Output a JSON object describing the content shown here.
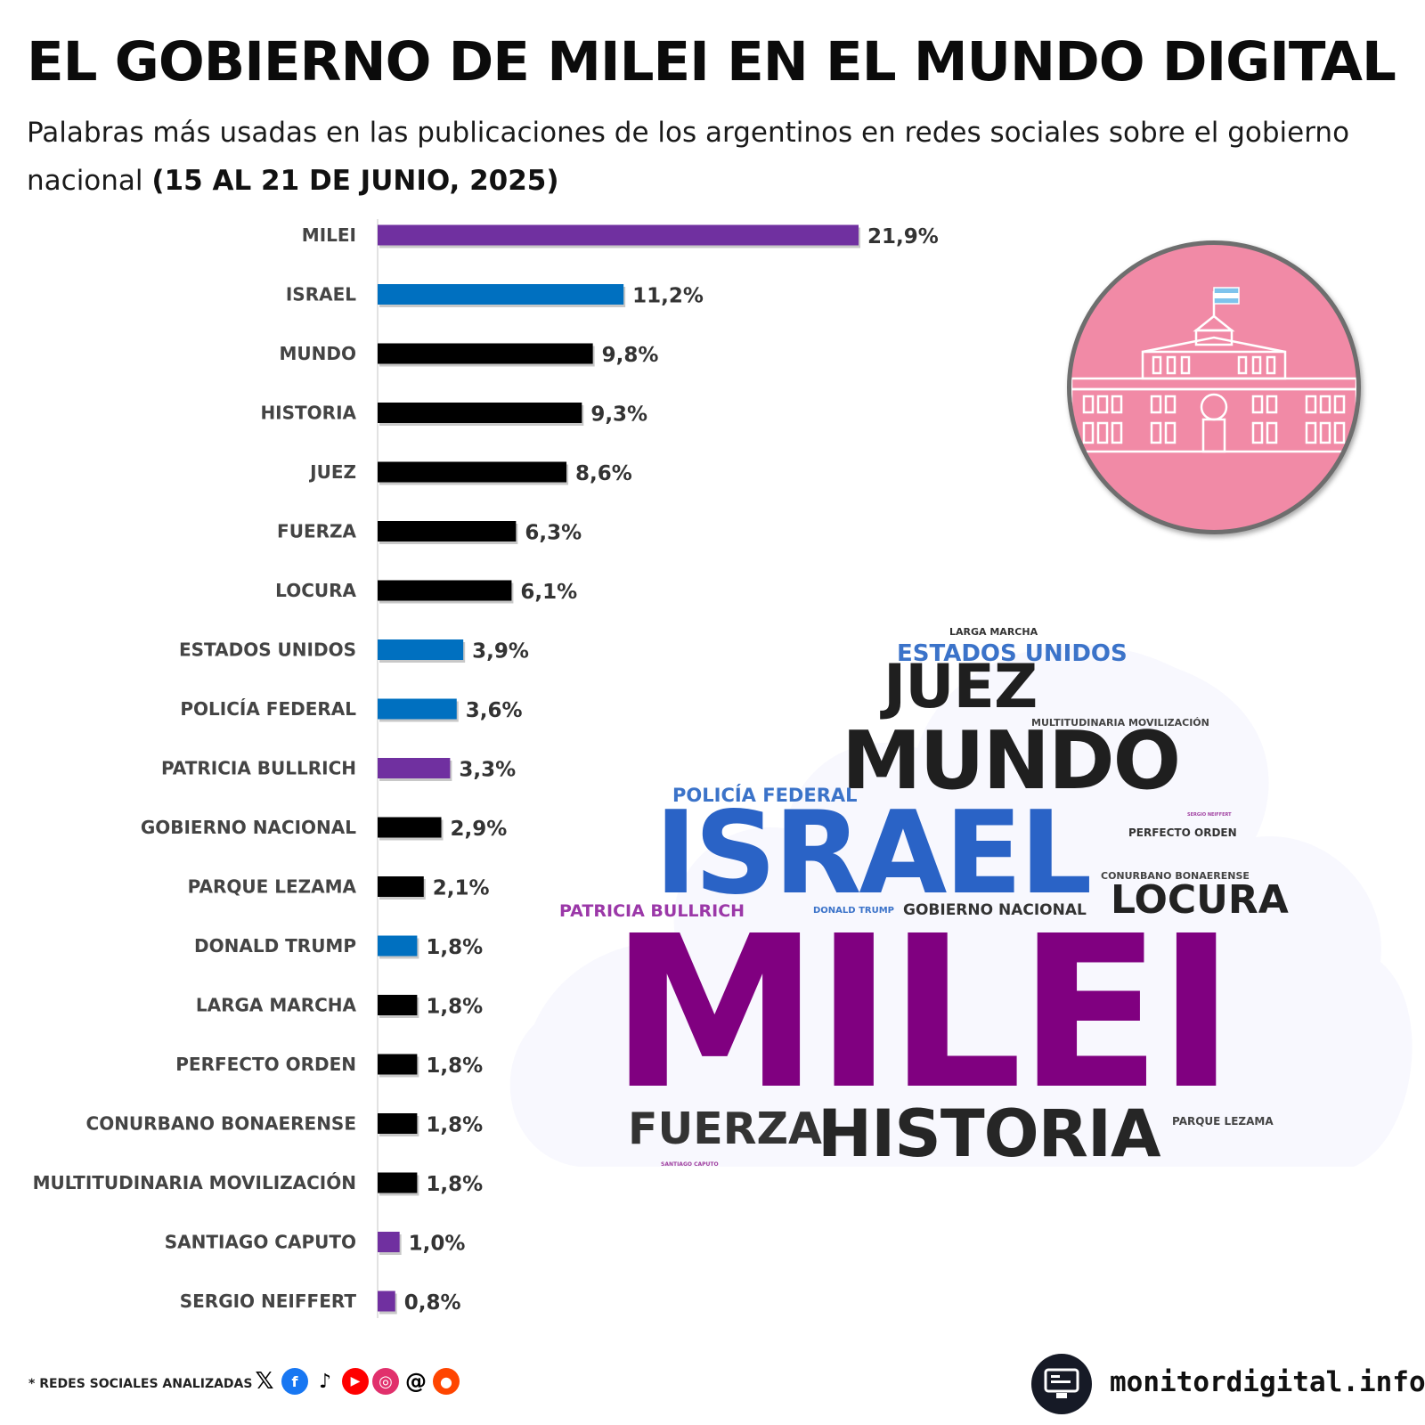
{
  "header": {
    "title": "EL GOBIERNO DE MILEI EN EL MUNDO DIGITAL",
    "subtitle": "Palabras más usadas en las publicaciones de los argentinos en redes sociales sobre el gobierno nacional",
    "date_range": "(15 AL 21 DE JUNIO, 2025)"
  },
  "chart_data": {
    "type": "bar",
    "orientation": "horizontal",
    "title": "EL GOBIERNO DE MILEI EN EL MUNDO DIGITAL",
    "xlabel": "",
    "ylabel": "",
    "xlim": [
      0,
      21.9
    ],
    "unit": "%",
    "categories": [
      "MILEI",
      "ISRAEL",
      "MUNDO",
      "HISTORIA",
      "JUEZ",
      "FUERZA",
      "LOCURA",
      "ESTADOS UNIDOS",
      "POLICÍA FEDERAL",
      "PATRICIA BULLRICH",
      "GOBIERNO NACIONAL",
      "PARQUE LEZAMA",
      "DONALD TRUMP",
      "LARGA MARCHA",
      "PERFECTO ORDEN",
      "CONURBANO BONAERENSE",
      "MULTITUDINARIA MOVILIZACIÓN",
      "SANTIAGO CAPUTO",
      "SERGIO NEIFFERT"
    ],
    "values": [
      21.9,
      11.2,
      9.8,
      9.3,
      8.6,
      6.3,
      6.1,
      3.9,
      3.6,
      3.3,
      2.9,
      2.1,
      1.8,
      1.8,
      1.8,
      1.8,
      1.8,
      1.0,
      0.8
    ],
    "value_labels": [
      "21,9%",
      "11,2%",
      "9,8%",
      "9,3%",
      "8,6%",
      "6,3%",
      "6,1%",
      "3,9%",
      "3,6%",
      "3,3%",
      "2,9%",
      "2,1%",
      "1,8%",
      "1,8%",
      "1,8%",
      "1,8%",
      "1,8%",
      "1,0%",
      "0,8%"
    ],
    "bar_groups": [
      "person",
      "international",
      "topic",
      "topic",
      "topic",
      "topic",
      "topic",
      "international",
      "international",
      "person",
      "topic",
      "topic",
      "international",
      "topic",
      "topic",
      "topic",
      "topic",
      "person",
      "person"
    ],
    "group_colors": {
      "person": "#7030a0",
      "international": "#0070c0",
      "topic": "#000000"
    }
  },
  "word_cloud": [
    {
      "text": "LARGA MARCHA",
      "color": "#333333"
    },
    {
      "text": "ESTADOS UNIDOS",
      "color": "#3b73c9"
    },
    {
      "text": "JUEZ",
      "color": "#1f1f1f"
    },
    {
      "text": "MULTITUDINARIA MOVILIZACIÓN",
      "color": "#444444"
    },
    {
      "text": "MUNDO",
      "color": "#1f1f1f"
    },
    {
      "text": "POLICÍA FEDERAL",
      "color": "#3b73c9"
    },
    {
      "text": "SERGIO NEIFFERT",
      "color": "#a040a0"
    },
    {
      "text": "PERFECTO ORDEN",
      "color": "#333333"
    },
    {
      "text": "ISRAEL",
      "color": "#2a63c6"
    },
    {
      "text": "CONURBANO BONAERENSE",
      "color": "#444444"
    },
    {
      "text": "PATRICIA BULLRICH",
      "color": "#9b38a8"
    },
    {
      "text": "DONALD TRUMP",
      "color": "#3b73c9"
    },
    {
      "text": "GOBIERNO NACIONAL",
      "color": "#333333"
    },
    {
      "text": "LOCURA",
      "color": "#222222"
    },
    {
      "text": "MILEI",
      "color": "#800080"
    },
    {
      "text": "FUERZA",
      "color": "#333333"
    },
    {
      "text": "HISTORIA",
      "color": "#262626"
    },
    {
      "text": "PARQUE LEZAMA",
      "color": "#444444"
    },
    {
      "text": "SANTIAGO CAPUTO",
      "color": "#a040a0"
    }
  ],
  "footer": {
    "note": "* REDES SOCIALES ANALIZADAS",
    "social_icons": [
      "x-icon",
      "facebook-icon",
      "tiktok-icon",
      "youtube-icon",
      "instagram-icon",
      "threads-icon",
      "reddit-icon"
    ],
    "brand": "monitordigital.info"
  },
  "badge": {
    "icon": "casa-rosada-icon"
  }
}
